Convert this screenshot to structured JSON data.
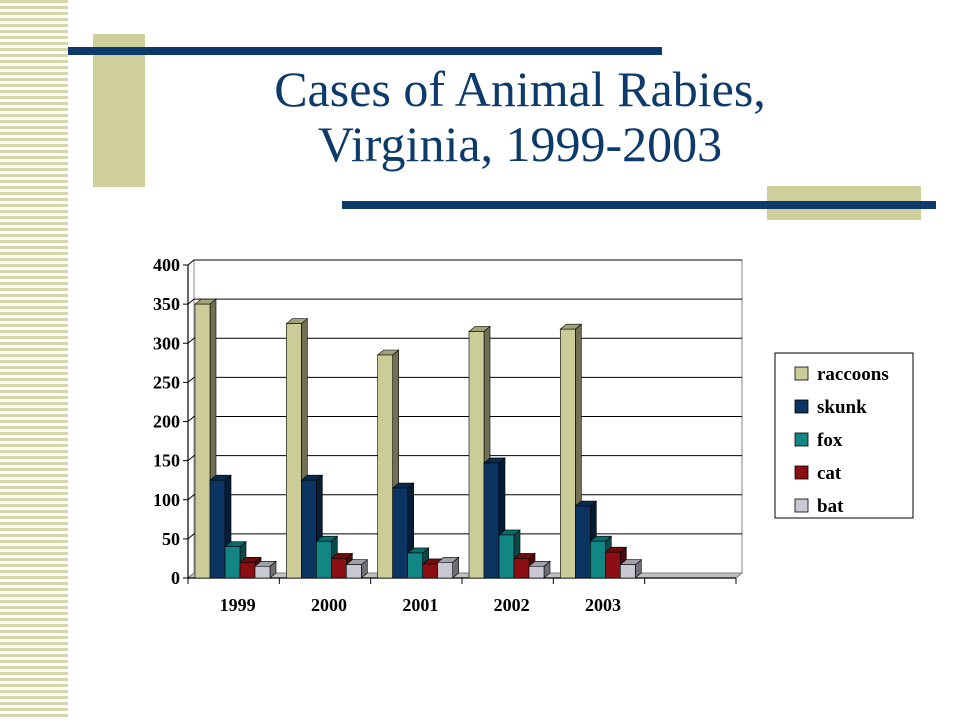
{
  "slide": {
    "title_line1": "Cases of Animal Rabies,",
    "title_line2": "Virginia, 1999-2003"
  },
  "chart_data": {
    "type": "bar",
    "categories": [
      "1999",
      "2000",
      "2001",
      "2002",
      "2003"
    ],
    "series": [
      {
        "name": "raccoons",
        "color": "#cccc99",
        "values": [
          350,
          325,
          285,
          315,
          318
        ]
      },
      {
        "name": "skunk",
        "color": "#0b3463",
        "values": [
          125,
          125,
          115,
          147,
          92
        ]
      },
      {
        "name": "fox",
        "color": "#128585",
        "values": [
          40,
          47,
          32,
          55,
          47
        ]
      },
      {
        "name": "cat",
        "color": "#8b0f12",
        "values": [
          20,
          25,
          18,
          25,
          33
        ]
      },
      {
        "name": "bat",
        "color": "#c8c8d4",
        "values": [
          15,
          17,
          20,
          15,
          17
        ]
      }
    ],
    "yticks": [
      0,
      50,
      100,
      150,
      200,
      250,
      300,
      350,
      400
    ],
    "ylim": [
      0,
      400
    ],
    "grid": true,
    "legend": "right",
    "title": "",
    "xlabel": "",
    "ylabel": ""
  }
}
